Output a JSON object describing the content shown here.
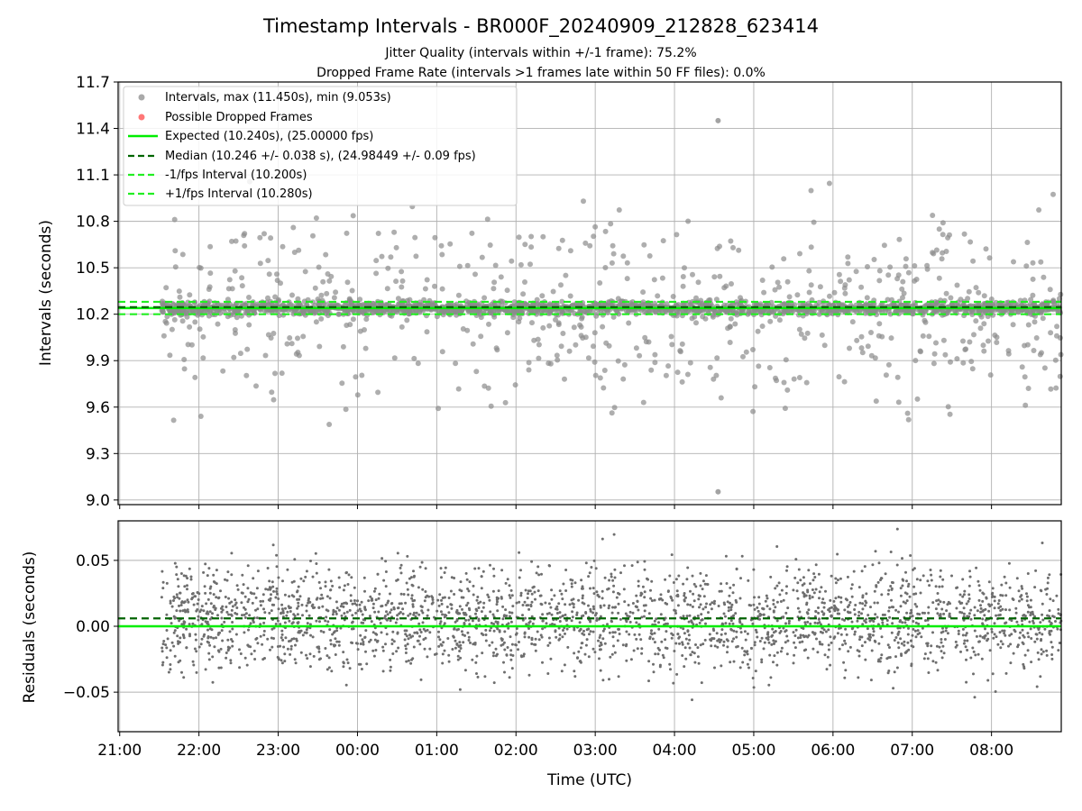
{
  "colors": {
    "expected": "#00ee00",
    "median": "#006400",
    "jitter": "#22ee22",
    "scatter": "#8c8c8c",
    "residual": "#6e6e6e",
    "dropped": "#ff5555",
    "grid": "#b0b0b0"
  },
  "chart_data": [
    {
      "type": "scatter",
      "title": "Timestamp Intervals - BR000F_20240909_212828_623414",
      "subtitle_lines": [
        "Jitter Quality (intervals within +/-1 frame): 75.2%",
        "Dropped Frame Rate (intervals >1 frames late within 50 FF files): 0.0%"
      ],
      "xlabel": "",
      "ylabel": "Intervals (seconds)",
      "ylim": [
        8.97,
        11.7
      ],
      "y_ticks": [
        "9.0",
        "9.3",
        "9.6",
        "9.9",
        "10.2",
        "10.5",
        "10.8",
        "11.1",
        "11.4",
        "11.7"
      ],
      "x_range_hours": [
        20.98,
        32.88
      ],
      "grid": true,
      "legend_position": "top-left",
      "legend": [
        "Intervals, max (11.450s), min (9.053s)",
        "Possible Dropped Frames",
        "Expected (10.240s), (25.00000 fps)",
        "Median (10.246 +/- 0.038 s), (24.98449 +/- 0.09 fps)",
        "-1/fps Interval (10.200s)",
        "+1/fps Interval (10.280s)"
      ],
      "series": [
        {
          "name": "Intervals",
          "max": 11.45,
          "min": 9.053,
          "x_start": 21.53,
          "x_end": 32.88
        },
        {
          "name": "Possible Dropped Frames",
          "count": 0
        },
        {
          "name": "Expected",
          "value": 10.24
        },
        {
          "name": "Median",
          "value": 10.246
        },
        {
          "name": "-1/fps Interval",
          "value": 10.2
        },
        {
          "name": "+1/fps Interval",
          "value": 10.28
        }
      ]
    },
    {
      "type": "scatter",
      "xlabel": "Time (UTC)",
      "ylabel": "Residuals (seconds)",
      "ylim": [
        -0.08,
        0.08
      ],
      "y_ticks": [
        "0.05",
        "0.00",
        "−0.05"
      ],
      "x_ticks": [
        "21:00",
        "22:00",
        "23:00",
        "00:00",
        "01:00",
        "02:00",
        "03:00",
        "04:00",
        "05:00",
        "06:00",
        "07:00",
        "08:00"
      ],
      "x_range_hours": [
        20.98,
        32.88
      ],
      "grid": true,
      "series": [
        {
          "name": "Residuals",
          "x_start": 21.53,
          "x_end": 32.88
        },
        {
          "name": "Expected",
          "value": 0.0
        },
        {
          "name": "Median",
          "value": 0.006
        }
      ]
    }
  ]
}
